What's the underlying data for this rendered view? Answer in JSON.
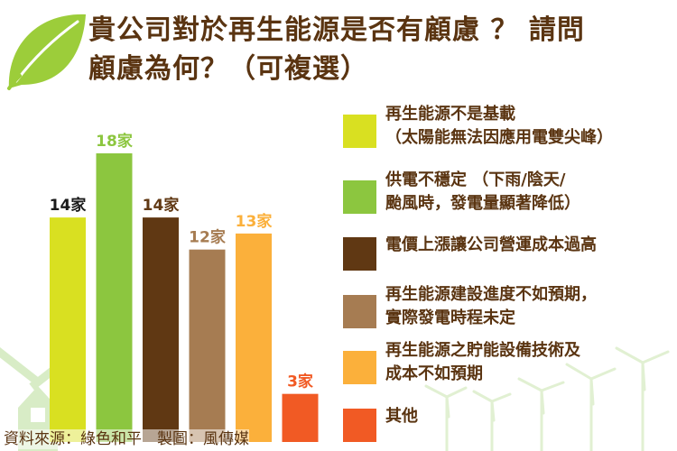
{
  "title": {
    "line1": "貴公司對於再生能源是否有顧慮 ？ 請問",
    "line2": "顧慮為何？（可複選）"
  },
  "colors": {
    "text": "#5a3411",
    "leaf": "#9ccd3a",
    "silhouette": "#d8ecc6"
  },
  "icons": {
    "leaf": "leaf-icon",
    "windmill": "windmill-icon",
    "turbines": "wind-turbine-icon"
  },
  "chart_data": {
    "type": "bar",
    "value_unit": "家",
    "values": [
      14,
      18,
      14,
      12,
      13,
      3
    ],
    "value_labels": [
      "14家",
      "18家",
      "14家",
      "12家",
      "13家",
      "3家"
    ],
    "series_colors": [
      "#d9e021",
      "#8cc63f",
      "#603813",
      "#a67c52",
      "#fbb03b",
      "#f15a24"
    ],
    "value_label_colors": [
      "#1a1a1a",
      "#8cc63f",
      "#603813",
      "#a67c52",
      "#fbb03b",
      "#f15a24"
    ],
    "categories": [
      {
        "line1": "再生能源不是基載",
        "line2": "（太陽能無法因應用電雙尖峰）"
      },
      {
        "line1": "供電不穩定 （下雨/陰天/",
        "line2": "颱風時，發電量顯著降低）"
      },
      {
        "line1": "電價上漲讓公司營運成本過高",
        "line2": ""
      },
      {
        "line1": "再生能源建設進度不如預期，",
        "line2": "實際發電時程未定"
      },
      {
        "line1": "再生能源之貯能設備技術及",
        "line2": "成本不如預期"
      },
      {
        "line1": "其他",
        "line2": ""
      }
    ],
    "ylim": [
      0,
      18
    ]
  },
  "footer": {
    "source": "資料來源：綠色和平　製圖：風傳媒"
  }
}
